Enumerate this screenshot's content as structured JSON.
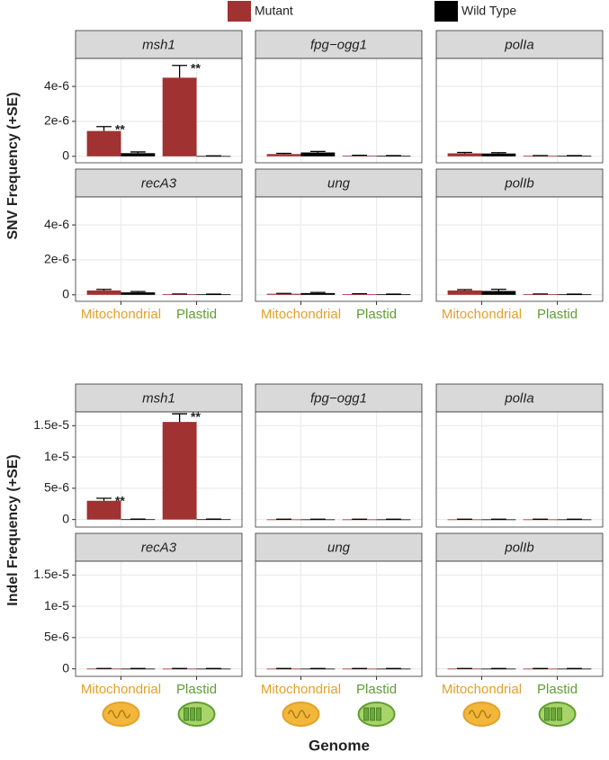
{
  "legend": {
    "series": [
      {
        "name": "Mutant",
        "color": "#a03232"
      },
      {
        "name": "Wild Type",
        "color": "#000000"
      }
    ]
  },
  "x_label": "Genome",
  "chart_data": [
    {
      "type": "bar",
      "y_label": "SNV Frequency (+SE)",
      "categories": [
        "Mitochondrial",
        "Plastid"
      ],
      "category_colors": [
        "#e2a12a",
        "#5f9e33"
      ],
      "ylim": [
        -3.7e-07,
        5.6e-06
      ],
      "yticks": [
        0,
        {
          "value": 2e-06,
          "label": "2e-6"
        },
        {
          "value": 4e-06,
          "label": "4e-6"
        }
      ],
      "grid": true,
      "facets": [
        {
          "title": "msh1",
          "series": [
            {
              "values": [
                1.45e-06,
                4.5e-06
              ],
              "errors": [
                2.5e-07,
                7e-07
              ],
              "annotations": [
                "**",
                "**"
              ]
            },
            {
              "values": [
                1.8e-07,
                2e-08
              ],
              "errors": [
                7e-08,
                1e-08
              ]
            }
          ]
        },
        {
          "title": "fpg−ogg1",
          "series": [
            {
              "values": [
                1.3e-07,
                4e-08
              ],
              "errors": [
                4e-08,
                2e-08
              ]
            },
            {
              "values": [
                2.2e-07,
                3e-08
              ],
              "errors": [
                6e-08,
                1e-08
              ]
            }
          ]
        },
        {
          "title": "polIa",
          "series": [
            {
              "values": [
                1.7e-07,
                3e-08
              ],
              "errors": [
                5e-08,
                1e-08
              ]
            },
            {
              "values": [
                1.6e-07,
                3e-08
              ],
              "errors": [
                5e-08,
                1e-08
              ]
            }
          ]
        },
        {
          "title": "recA3",
          "series": [
            {
              "values": [
                2.5e-07,
                4e-08
              ],
              "errors": [
                6e-08,
                1e-08
              ]
            },
            {
              "values": [
                1.4e-07,
                3e-08
              ],
              "errors": [
                5e-08,
                1e-08
              ]
            }
          ]
        },
        {
          "title": "ung",
          "series": [
            {
              "values": [
                6e-08,
                4e-08
              ],
              "errors": [
                2e-08,
                2e-08
              ]
            },
            {
              "values": [
                1e-07,
                3e-08
              ],
              "errors": [
                4e-08,
                1e-08
              ]
            }
          ]
        },
        {
          "title": "polIb",
          "series": [
            {
              "values": [
                2.5e-07,
                4e-08
              ],
              "errors": [
                5e-08,
                1e-08
              ]
            },
            {
              "values": [
                2.2e-07,
                3e-08
              ],
              "errors": [
                1e-07,
                1e-08
              ]
            }
          ]
        }
      ]
    },
    {
      "type": "bar",
      "y_label": "Indel Frequency (+SE)",
      "categories": [
        "Mitochondrial",
        "Plastid"
      ],
      "category_colors": [
        "#e2a12a",
        "#5f9e33"
      ],
      "ylim": [
        -1.2e-06,
        1.72e-05
      ],
      "yticks": [
        0,
        {
          "value": 5e-06,
          "label": "5e-6"
        },
        {
          "value": 1e-05,
          "label": "1e-5"
        },
        {
          "value": 1.5e-05,
          "label": "1.5e-5"
        }
      ],
      "grid": true,
      "facets": [
        {
          "title": "msh1",
          "series": [
            {
              "values": [
                3e-06,
                1.56e-05
              ],
              "errors": [
                4e-07,
                1.3e-06
              ],
              "annotations": [
                "**",
                "**"
              ]
            },
            {
              "values": [
                5e-08,
                5e-08
              ],
              "errors": [
                2e-08,
                2e-08
              ]
            }
          ]
        },
        {
          "title": "fpg−ogg1",
          "series": [
            {
              "values": [
                3e-08,
                3e-08
              ],
              "errors": [
                2e-08,
                2e-08
              ]
            },
            {
              "values": [
                3e-08,
                3e-08
              ],
              "errors": [
                2e-08,
                2e-08
              ]
            }
          ]
        },
        {
          "title": "polIa",
          "series": [
            {
              "values": [
                3e-08,
                3e-08
              ],
              "errors": [
                2e-08,
                2e-08
              ]
            },
            {
              "values": [
                3e-08,
                3e-08
              ],
              "errors": [
                2e-08,
                2e-08
              ]
            }
          ]
        },
        {
          "title": "recA3",
          "series": [
            {
              "values": [
                4e-08,
                3e-08
              ],
              "errors": [
                2e-08,
                2e-08
              ]
            },
            {
              "values": [
                3e-08,
                3e-08
              ],
              "errors": [
                2e-08,
                2e-08
              ]
            }
          ]
        },
        {
          "title": "ung",
          "series": [
            {
              "values": [
                3e-08,
                3e-08
              ],
              "errors": [
                2e-08,
                2e-08
              ]
            },
            {
              "values": [
                3e-08,
                3e-08
              ],
              "errors": [
                2e-08,
                2e-08
              ]
            }
          ]
        },
        {
          "title": "polIb",
          "series": [
            {
              "values": [
                4e-08,
                3e-08
              ],
              "errors": [
                2e-08,
                2e-08
              ]
            },
            {
              "values": [
                3e-08,
                3e-08
              ],
              "errors": [
                2e-08,
                2e-08
              ]
            }
          ]
        }
      ]
    }
  ]
}
